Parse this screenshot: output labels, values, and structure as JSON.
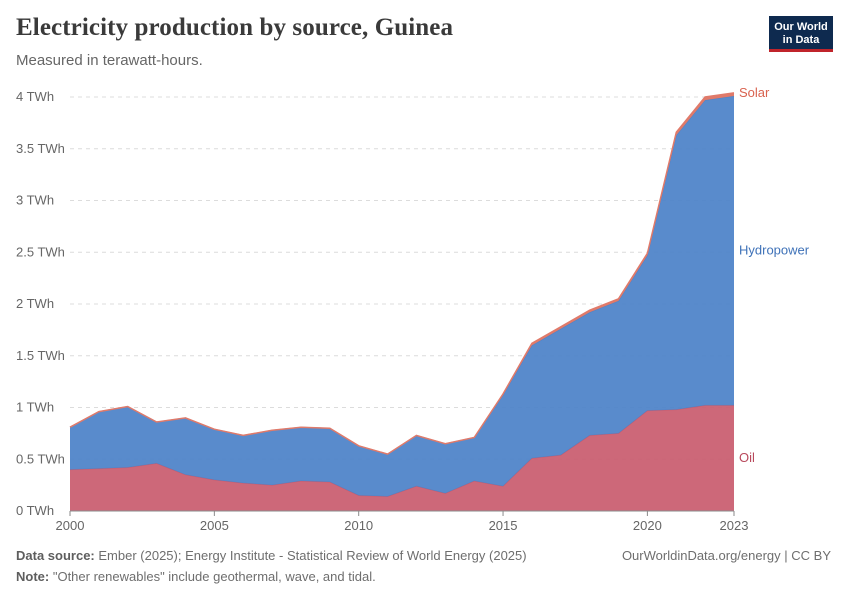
{
  "header": {
    "title": "Electricity production by source, Guinea",
    "subtitle": "Measured in terawatt-hours.",
    "logo_line1": "Our World",
    "logo_line2": "in Data"
  },
  "footer": {
    "source_label": "Data source:",
    "source_text": "Ember (2025); Energy Institute - Statistical Review of World Energy (2025)",
    "note_label": "Note:",
    "note_text": "\"Other renewables\" include geothermal, wave, and tidal.",
    "credit": "OurWorldinData.org/energy | CC BY"
  },
  "chart_data": {
    "type": "area",
    "stacked": true,
    "title": "Electricity production by source, Guinea",
    "ylabel": "TWh",
    "ylim": [
      0,
      4
    ],
    "yticks": [
      0,
      0.5,
      1,
      1.5,
      2,
      2.5,
      3,
      3.5,
      4
    ],
    "ytick_labels": [
      "0 TWh",
      "0.5 TWh",
      "1 TWh",
      "1.5 TWh",
      "2 TWh",
      "2.5 TWh",
      "3 TWh",
      "3.5 TWh",
      "4 TWh"
    ],
    "xlim": [
      2000,
      2023
    ],
    "xticks": [
      2000,
      2005,
      2010,
      2015,
      2020,
      2023
    ],
    "xtick_labels": [
      "2000",
      "2005",
      "2010",
      "2015",
      "2020",
      "2023"
    ],
    "x": [
      2000,
      2001,
      2002,
      2003,
      2004,
      2005,
      2006,
      2007,
      2008,
      2009,
      2010,
      2011,
      2012,
      2013,
      2014,
      2015,
      2016,
      2017,
      2018,
      2019,
      2020,
      2021,
      2022,
      2023
    ],
    "series": [
      {
        "name": "Oil",
        "color": "#c95d6f",
        "values": [
          0.4,
          0.41,
          0.42,
          0.46,
          0.35,
          0.3,
          0.27,
          0.25,
          0.29,
          0.28,
          0.15,
          0.14,
          0.24,
          0.17,
          0.29,
          0.24,
          0.51,
          0.54,
          0.73,
          0.75,
          0.97,
          0.98,
          1.02,
          1.02
        ]
      },
      {
        "name": "Hydropower",
        "color": "#4c82c8",
        "values": [
          0.41,
          0.55,
          0.59,
          0.4,
          0.55,
          0.49,
          0.46,
          0.53,
          0.52,
          0.52,
          0.48,
          0.41,
          0.49,
          0.48,
          0.42,
          0.88,
          1.09,
          1.22,
          1.19,
          1.28,
          1.5,
          2.65,
          2.95,
          2.99
        ]
      },
      {
        "name": "Solar",
        "color": "#e07a6a",
        "values": [
          0,
          0,
          0,
          0,
          0,
          0,
          0,
          0,
          0,
          0,
          0,
          0,
          0,
          0,
          0,
          0.01,
          0.02,
          0.02,
          0.02,
          0.02,
          0.02,
          0.03,
          0.03,
          0.03
        ]
      }
    ]
  }
}
